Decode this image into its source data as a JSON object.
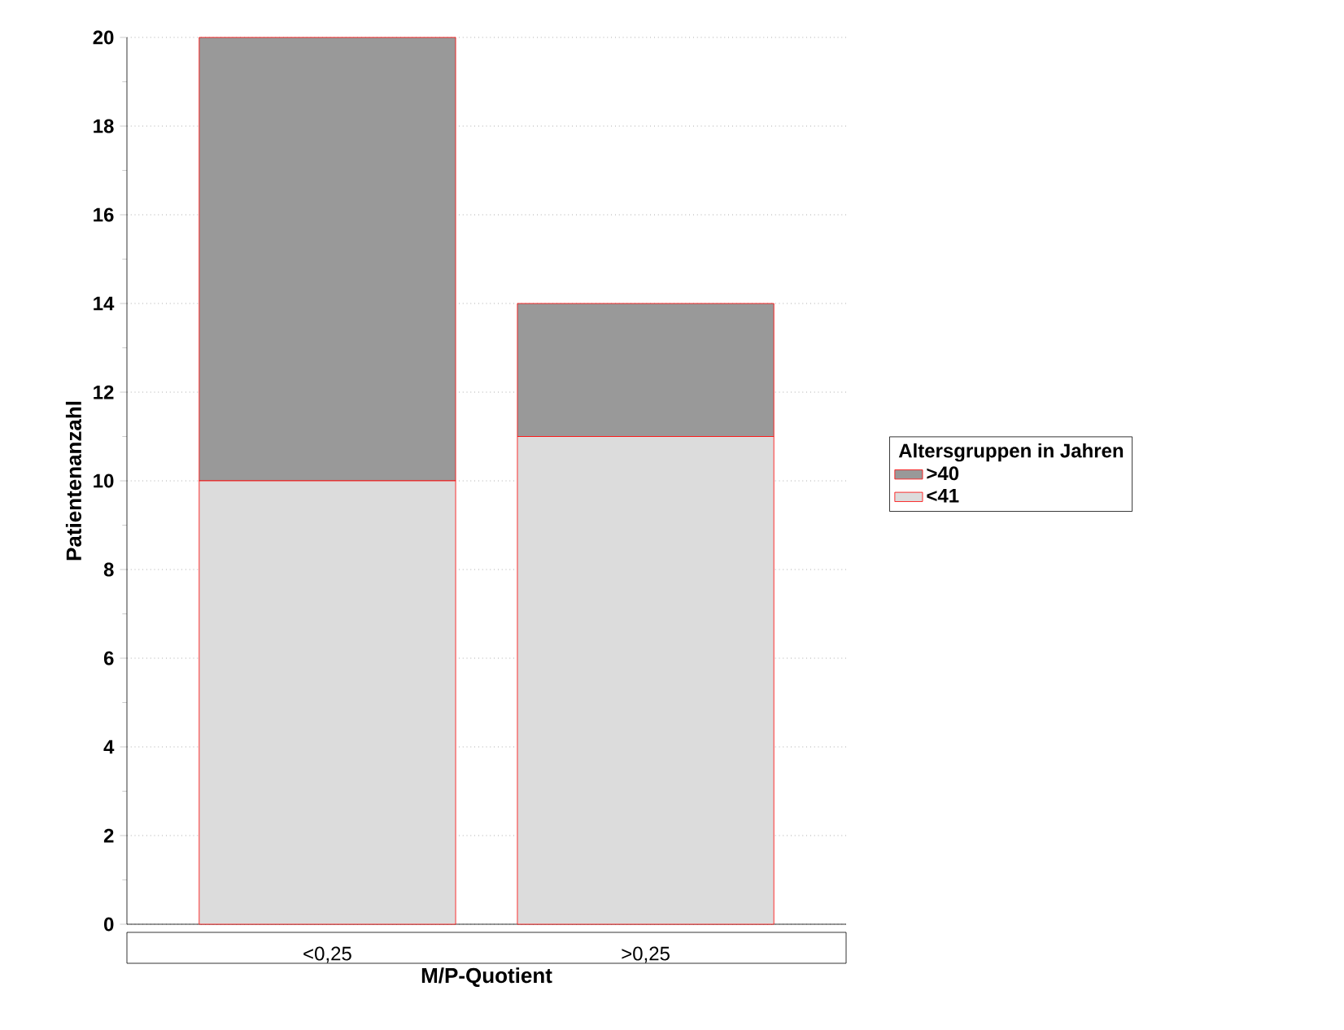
{
  "chart_data": {
    "type": "bar",
    "stacked": true,
    "categories": [
      "<0,25",
      ">0,25"
    ],
    "xlabel": "M/P-Quotient",
    "ylabel": "Patientenanzahl",
    "legend_title": "Altersgruppen in Jahren",
    "series": [
      {
        "name": "<41",
        "color": "#dcdcdc",
        "values": [
          10,
          11
        ]
      },
      {
        "name": ">40",
        "color": "#999999",
        "values": [
          10,
          3
        ]
      }
    ],
    "ylim": [
      0,
      20
    ],
    "yticks": [
      0,
      2,
      4,
      6,
      8,
      10,
      12,
      14,
      16,
      18,
      20
    ],
    "grid": "y",
    "legend": "right"
  }
}
